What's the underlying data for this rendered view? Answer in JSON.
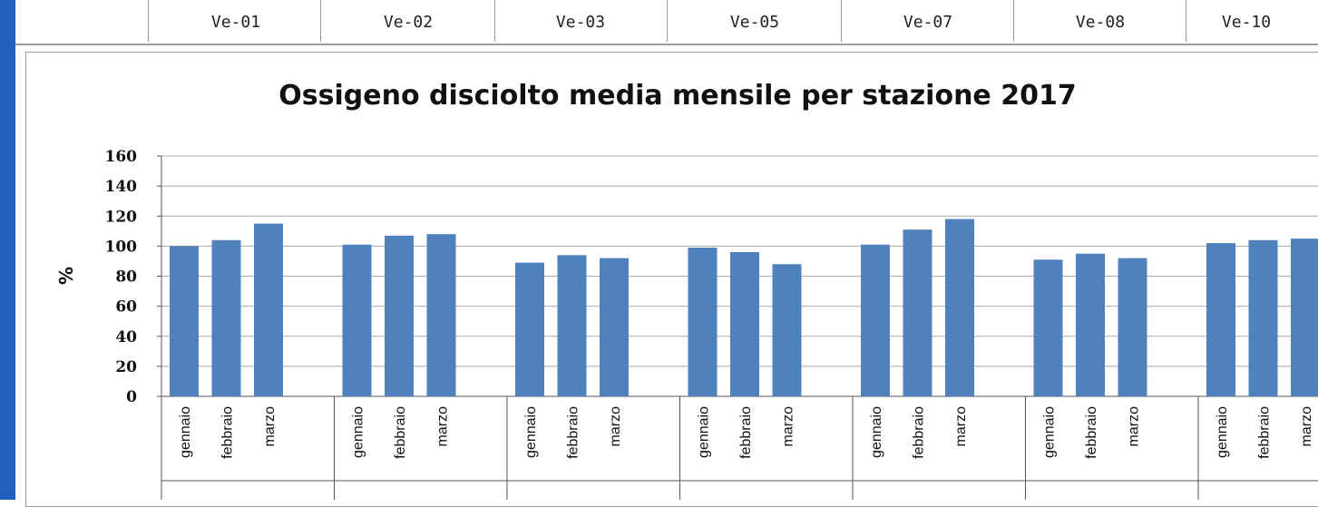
{
  "header": {
    "stations": [
      "Ve-01",
      "Ve-02",
      "Ve-03",
      "Ve-05",
      "Ve-07",
      "Ve-08",
      "Ve-10"
    ]
  },
  "chart_data": {
    "type": "bar",
    "title": "Ossigeno disciolto  media mensile per stazione 2017",
    "ylabel": "%",
    "xlabel": "",
    "ylim": [
      0,
      160
    ],
    "yticks": [
      0,
      20,
      40,
      60,
      80,
      100,
      120,
      140,
      160
    ],
    "grid": true,
    "bar_color": "#4f81bd",
    "groups": [
      {
        "months": [
          "gennaio",
          "febbraio",
          "marzo"
        ],
        "values": [
          100,
          104,
          115
        ]
      },
      {
        "months": [
          "gennaio",
          "febbraio",
          "marzo"
        ],
        "values": [
          101,
          107,
          108
        ]
      },
      {
        "months": [
          "gennaio",
          "febbraio",
          "marzo"
        ],
        "values": [
          89,
          94,
          92
        ]
      },
      {
        "months": [
          "gennaio",
          "febbraio",
          "marzo"
        ],
        "values": [
          99,
          96,
          88
        ]
      },
      {
        "months": [
          "gennaio",
          "febbraio",
          "marzo"
        ],
        "values": [
          101,
          111,
          118
        ]
      },
      {
        "months": [
          "gennaio",
          "febbraio",
          "marzo"
        ],
        "values": [
          91,
          95,
          92
        ]
      },
      {
        "months": [
          "gennaio",
          "febbraio",
          "marzo"
        ],
        "values": [
          102,
          104,
          105
        ]
      }
    ]
  }
}
